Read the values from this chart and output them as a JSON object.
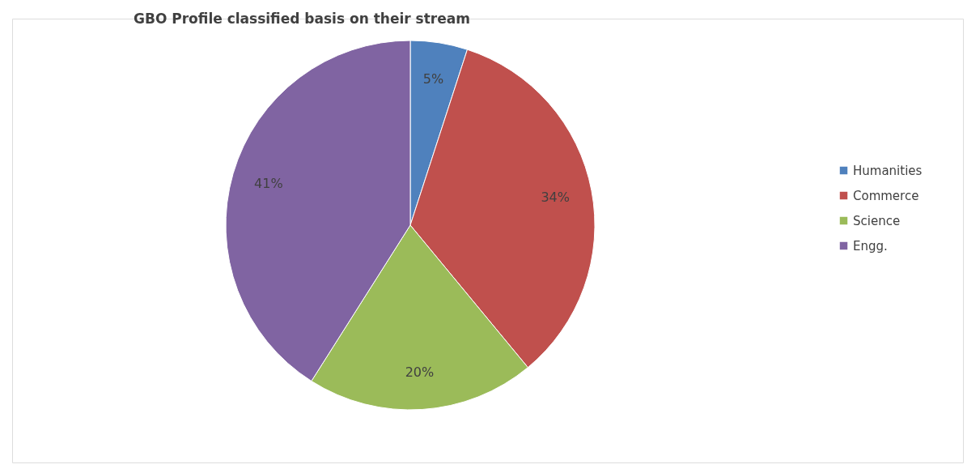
{
  "chart_data": {
    "type": "pie",
    "title": "GBO Profile classified basis on their stream",
    "categories": [
      "Humanities",
      "Commerce",
      "Science",
      "Engg."
    ],
    "values": [
      5,
      34,
      20,
      41
    ],
    "colors": [
      "#4f81bd",
      "#c0504d",
      "#9bbb59",
      "#8064a2"
    ],
    "value_labels": [
      "5%",
      "34%",
      "20%",
      "41%"
    ],
    "legend": "right"
  }
}
